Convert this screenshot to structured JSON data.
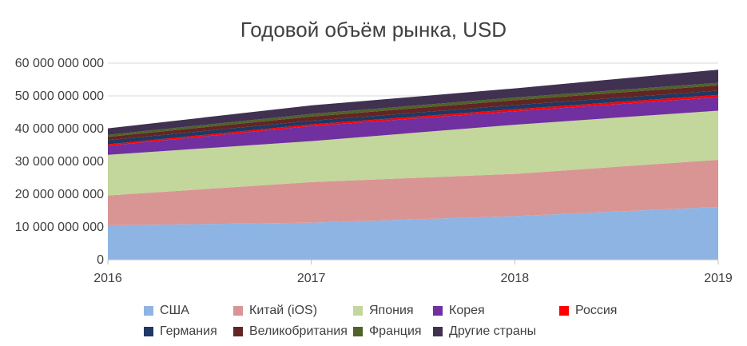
{
  "chart_data": {
    "type": "area",
    "stacked": true,
    "title": "Годовой объём рынка, USD",
    "x": [
      "2016",
      "2017",
      "2018",
      "2019"
    ],
    "ylim": [
      0,
      60000000000
    ],
    "yticks": [
      "0",
      "10 000 000 000",
      "20 000 000 000",
      "30 000 000 000",
      "40 000 000 000",
      "50 000 000 000",
      "60 000 000 000"
    ],
    "grid": true,
    "legend_position": "bottom",
    "series": [
      {
        "name": "США",
        "color": "#8eb4e3",
        "values": [
          10500000000,
          11300000000,
          13300000000,
          16100000000
        ]
      },
      {
        "name": "Китай (iOS)",
        "color": "#d99594",
        "values": [
          9100000000,
          12400000000,
          12900000000,
          14400000000
        ]
      },
      {
        "name": "Япония",
        "color": "#c3d69b",
        "values": [
          12400000000,
          12500000000,
          15000000000,
          15000000000
        ]
      },
      {
        "name": "Корея",
        "color": "#7030a0",
        "values": [
          2800000000,
          4600000000,
          4100000000,
          4100000000
        ]
      },
      {
        "name": "Россия",
        "color": "#ff0000",
        "values": [
          400000000,
          500000000,
          600000000,
          700000000
        ]
      },
      {
        "name": "Германия",
        "color": "#1f3864",
        "values": [
          1300000000,
          1100000000,
          1300000000,
          1300000000
        ]
      },
      {
        "name": "Великобритания",
        "color": "#632523",
        "values": [
          1000000000,
          1300000000,
          1500000000,
          1600000000
        ]
      },
      {
        "name": "Франция",
        "color": "#4f6228",
        "values": [
          600000000,
          800000000,
          800000000,
          800000000
        ]
      },
      {
        "name": "Другие страны",
        "color": "#403151",
        "values": [
          2000000000,
          2600000000,
          2800000000,
          4000000000
        ]
      }
    ]
  }
}
